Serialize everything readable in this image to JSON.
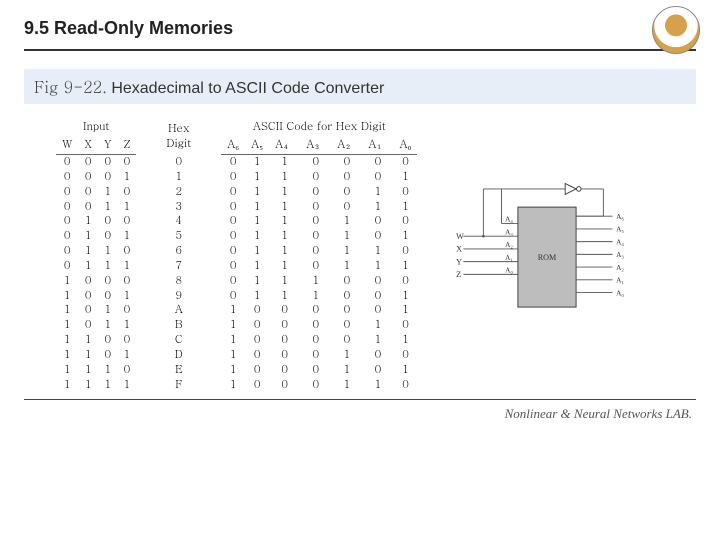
{
  "header": {
    "title": "9.5 Read-Only Memories"
  },
  "caption": {
    "fignum": "Fig 9-22.",
    "text": "Hexadecimal to ASCII Code Converter"
  },
  "table": {
    "group_headers": {
      "input": "Input",
      "hex": "Hex\nDigit",
      "ascii": "ASCII Code for Hex Digit"
    },
    "cols_input": [
      "W",
      "X",
      "Y",
      "Z"
    ],
    "cols_ascii": [
      "A₆",
      "A₅",
      "A₄",
      "A₃",
      "A₂",
      "A₁",
      "A₀"
    ],
    "rows": [
      {
        "in": [
          "0",
          "0",
          "0",
          "0"
        ],
        "hex": "0",
        "out": [
          "0",
          "1",
          "1",
          "0",
          "0",
          "0",
          "0"
        ]
      },
      {
        "in": [
          "0",
          "0",
          "0",
          "1"
        ],
        "hex": "1",
        "out": [
          "0",
          "1",
          "1",
          "0",
          "0",
          "0",
          "1"
        ]
      },
      {
        "in": [
          "0",
          "0",
          "1",
          "0"
        ],
        "hex": "2",
        "out": [
          "0",
          "1",
          "1",
          "0",
          "0",
          "1",
          "0"
        ]
      },
      {
        "in": [
          "0",
          "0",
          "1",
          "1"
        ],
        "hex": "3",
        "out": [
          "0",
          "1",
          "1",
          "0",
          "0",
          "1",
          "1"
        ]
      },
      {
        "in": [
          "0",
          "1",
          "0",
          "0"
        ],
        "hex": "4",
        "out": [
          "0",
          "1",
          "1",
          "0",
          "1",
          "0",
          "0"
        ]
      },
      {
        "in": [
          "0",
          "1",
          "0",
          "1"
        ],
        "hex": "5",
        "out": [
          "0",
          "1",
          "1",
          "0",
          "1",
          "0",
          "1"
        ]
      },
      {
        "in": [
          "0",
          "1",
          "1",
          "0"
        ],
        "hex": "6",
        "out": [
          "0",
          "1",
          "1",
          "0",
          "1",
          "1",
          "0"
        ]
      },
      {
        "in": [
          "0",
          "1",
          "1",
          "1"
        ],
        "hex": "7",
        "out": [
          "0",
          "1",
          "1",
          "0",
          "1",
          "1",
          "1"
        ]
      },
      {
        "in": [
          "1",
          "0",
          "0",
          "0"
        ],
        "hex": "8",
        "out": [
          "0",
          "1",
          "1",
          "1",
          "0",
          "0",
          "0"
        ]
      },
      {
        "in": [
          "1",
          "0",
          "0",
          "1"
        ],
        "hex": "9",
        "out": [
          "0",
          "1",
          "1",
          "1",
          "0",
          "0",
          "1"
        ]
      },
      {
        "in": [
          "1",
          "0",
          "1",
          "0"
        ],
        "hex": "A",
        "out": [
          "1",
          "0",
          "0",
          "0",
          "0",
          "0",
          "1"
        ]
      },
      {
        "in": [
          "1",
          "0",
          "1",
          "1"
        ],
        "hex": "B",
        "out": [
          "1",
          "0",
          "0",
          "0",
          "0",
          "1",
          "0"
        ]
      },
      {
        "in": [
          "1",
          "1",
          "0",
          "0"
        ],
        "hex": "C",
        "out": [
          "1",
          "0",
          "0",
          "0",
          "0",
          "1",
          "1"
        ]
      },
      {
        "in": [
          "1",
          "1",
          "0",
          "1"
        ],
        "hex": "D",
        "out": [
          "1",
          "0",
          "0",
          "0",
          "1",
          "0",
          "0"
        ]
      },
      {
        "in": [
          "1",
          "1",
          "1",
          "0"
        ],
        "hex": "E",
        "out": [
          "1",
          "0",
          "0",
          "0",
          "1",
          "0",
          "1"
        ]
      },
      {
        "in": [
          "1",
          "1",
          "1",
          "1"
        ],
        "hex": "F",
        "out": [
          "1",
          "0",
          "0",
          "0",
          "1",
          "1",
          "0"
        ]
      }
    ]
  },
  "diagram": {
    "rom_label": "ROM",
    "inputs": [
      "W",
      "X",
      "Y",
      "Z"
    ],
    "rom_in_labels": [
      "A₄",
      "A₃",
      "A₂",
      "A₁",
      "A₀"
    ],
    "rom_out_labels": [
      "A₆",
      "A₅",
      "A₄",
      "A₃",
      "A₂",
      "A₁",
      "A₀"
    ],
    "box_color": "#bdbdbd",
    "line_color": "#555",
    "font_size": 9
  },
  "footer": {
    "text": "Nonlinear & Neural Networks LAB."
  },
  "colors": {
    "caption_bg": "#e8eef7",
    "rule": "#333"
  }
}
